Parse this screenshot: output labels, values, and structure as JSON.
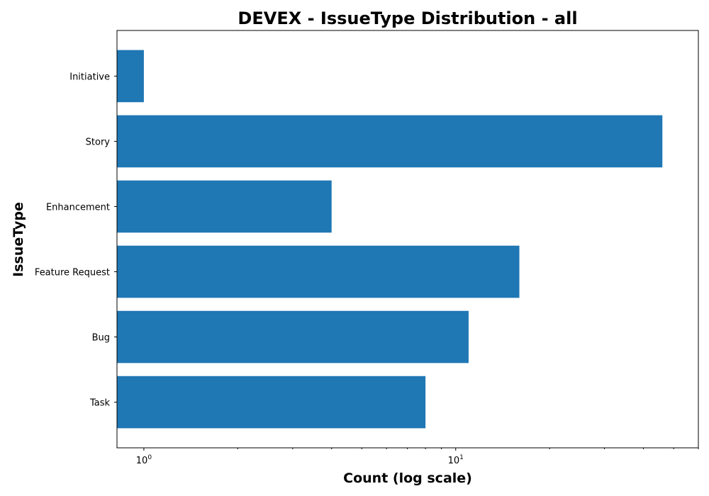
{
  "chart_data": {
    "type": "bar",
    "orientation": "horizontal",
    "title": "DEVEX - IssueType Distribution - all",
    "xlabel": "Count (log scale)",
    "ylabel": "IssueType",
    "x_scale": "log",
    "xlim": [
      0.82,
      60
    ],
    "categories": [
      "Initiative",
      "Story",
      "Enhancement",
      "Feature Request",
      "Bug",
      "Task"
    ],
    "values": [
      1,
      46,
      4,
      16,
      11,
      8
    ],
    "x_ticks": [
      {
        "base": "10",
        "exp": "0",
        "value": 1
      },
      {
        "base": "10",
        "exp": "1",
        "value": 10
      }
    ],
    "bar_color": "#1f77b4",
    "grid": false,
    "legend": false
  }
}
